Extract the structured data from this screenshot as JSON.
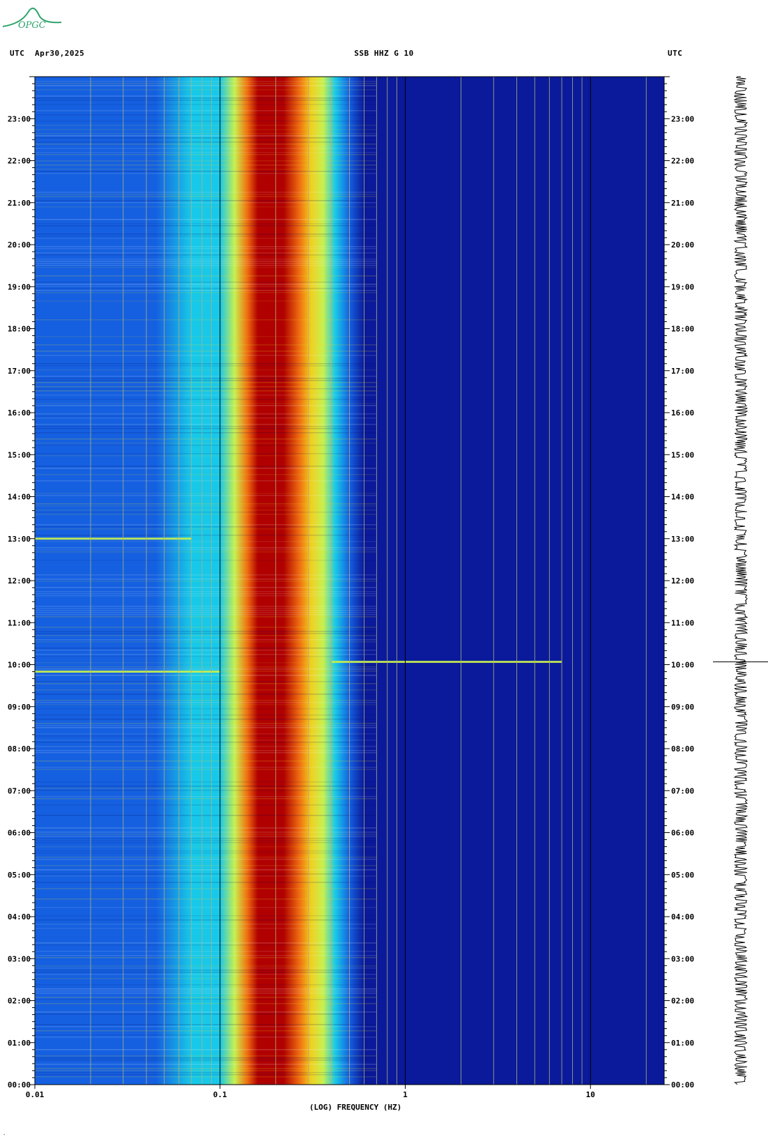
{
  "header": {
    "utc_left": "UTC",
    "date": "Apr30,2025",
    "title": "SSB HHZ G 10",
    "utc_right": "UTC"
  },
  "logo": {
    "text": "OPGC",
    "color": "#2ea36b"
  },
  "footnote": ".",
  "chart_data": {
    "type": "heatmap",
    "title": "SSB HHZ G 10",
    "xlabel": "(LOG) FREQUENCY (HZ)",
    "ylabel": "UTC",
    "x_scale": "log",
    "xlim": [
      0.01,
      25
    ],
    "x_ticks": [
      0.01,
      0.1,
      1,
      10
    ],
    "x_tick_labels": [
      "0.01",
      "0.1",
      "1",
      "10"
    ],
    "y_range_hours": [
      0,
      24
    ],
    "y_ticks": [
      "00:00",
      "01:00",
      "02:00",
      "03:00",
      "04:00",
      "05:00",
      "06:00",
      "07:00",
      "08:00",
      "09:00",
      "10:00",
      "11:00",
      "12:00",
      "13:00",
      "14:00",
      "15:00",
      "16:00",
      "17:00",
      "18:00",
      "19:00",
      "20:00",
      "21:00",
      "22:00",
      "23:00"
    ],
    "colormap": [
      "#0a1a9a",
      "#1560e0",
      "#18c8e8",
      "#c8f050",
      "#f0d020",
      "#f07010",
      "#b00000"
    ],
    "power_peak_hz": [
      0.15,
      0.3
    ],
    "notable_events": [
      {
        "time": "10:04",
        "f_min_hz": 0.4,
        "f_max_hz": 7
      },
      {
        "time": "09:50",
        "f_min_hz": 0.01,
        "f_max_hz": 0.1
      },
      {
        "time": "13:00",
        "f_min_hz": 0.01,
        "f_max_hz": 0.07
      }
    ],
    "trace_color": "#000000"
  }
}
